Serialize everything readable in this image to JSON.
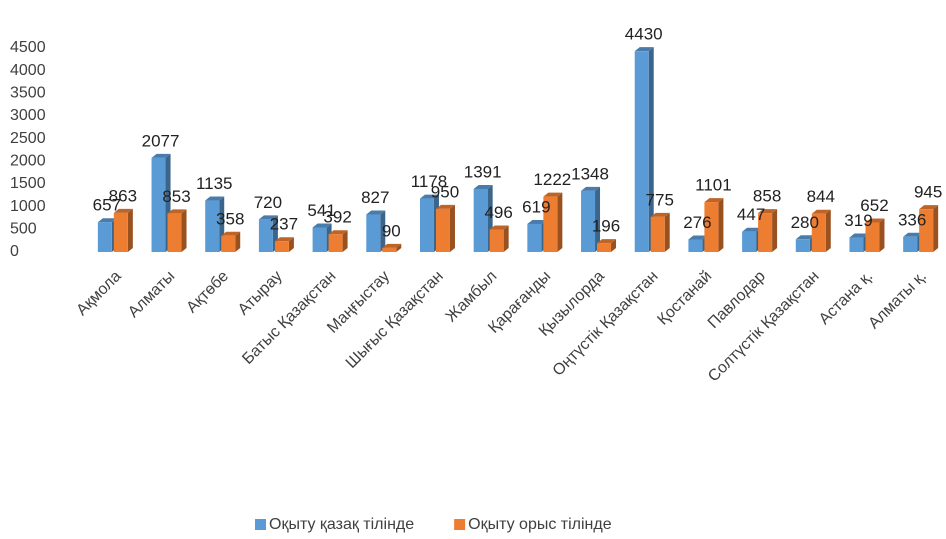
{
  "chart_data": {
    "type": "bar",
    "categories": [
      "Ақмола",
      "Алматы",
      "Ақтөбе",
      "Атырау",
      "Батыс Қазақстан",
      "Маңғыстау",
      "Шығыс Қазақстан",
      "Жамбыл",
      "Қарағанды",
      "Қызылорда",
      "Оңтүстік Қазақстан",
      "Қостанай",
      "Павлодар",
      "Солтүстік Қазақстан",
      "Астана қ.",
      "Алматы қ."
    ],
    "series": [
      {
        "name": "Оқыту қазақ тілінде",
        "color": "#5b9bd5",
        "values": [
          657,
          2077,
          1135,
          720,
          541,
          827,
          1178,
          1391,
          619,
          1348,
          4430,
          276,
          447,
          280,
          319,
          336
        ]
      },
      {
        "name": "Оқыту орыс тілінде",
        "color": "#ed7d31",
        "values": [
          863,
          853,
          358,
          237,
          392,
          90,
          950,
          496,
          1222,
          196,
          775,
          1101,
          858,
          844,
          652,
          945
        ]
      }
    ],
    "ylim": [
      0,
      4500
    ],
    "yticks": [
      0,
      500,
      1000,
      1500,
      2000,
      2500,
      3000,
      3500,
      4000,
      4500
    ],
    "grid": false,
    "legend": "bottom"
  }
}
